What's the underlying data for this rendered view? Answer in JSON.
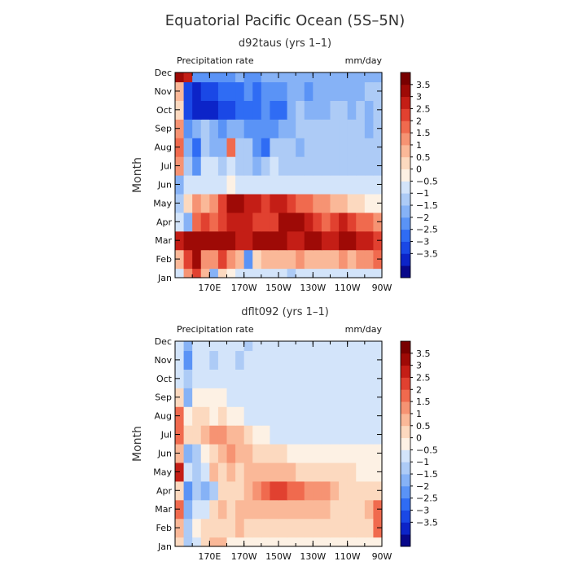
{
  "chart_data": {
    "type": "heatmap",
    "title": "Equatorial Pacific Ocean (5S–5N)",
    "colors": [
      "#08088a",
      "#0c24c8",
      "#1a48e6",
      "#2f6cf4",
      "#5a93f6",
      "#86b2f6",
      "#adcbf6",
      "#d3e4fa",
      "#fdf1e4",
      "#fcd9bf",
      "#fab898",
      "#f69373",
      "#f06a4e",
      "#e14130",
      "#c41e16",
      "#9e0a06",
      "#780000"
    ],
    "levels": [
      -3.5,
      -3,
      -2.5,
      -2,
      -1.5,
      -1,
      -0.5,
      0,
      0.5,
      1,
      1.5,
      2,
      2.5,
      3,
      3.5
    ],
    "panels": [
      {
        "subtitle": "d92taus (yrs 1–1)",
        "variable": "Precipitation rate",
        "units": "mm/day",
        "ylabel": "Month",
        "yticks": [
          "Jan",
          "Feb",
          "Mar",
          "Apr",
          "May",
          "Jun",
          "Jul",
          "Aug",
          "Sep",
          "Oct",
          "Nov",
          "Dec"
        ],
        "xticks": [
          "170E",
          "170W",
          "150W",
          "130W",
          "110W",
          "90W"
        ],
        "xlim": [
          150,
          270
        ],
        "colorbar_labels": [
          "3.5",
          "3",
          "2.5",
          "2",
          "1.5",
          "1",
          "0.5",
          "0",
          "−0.5",
          "−1",
          "−1.5",
          "−2",
          "−2.5",
          "−3",
          "−3.5"
        ],
        "grid": [
          [
            -0.5,
            1.5,
            2.5,
            1.0,
            -1.5,
            0.5,
            0.0,
            -0.5,
            -0.5,
            -0.5,
            -0.5,
            -0.5,
            -0.5,
            -1.0,
            -0.5,
            -0.5,
            -0.5,
            -0.5,
            -0.5,
            -0.5,
            -0.5,
            -0.5,
            -0.5,
            -0.5
          ],
          [
            1.0,
            2.5,
            3.5,
            1.5,
            1.5,
            2.5,
            1.5,
            1.0,
            -2.0,
            0.5,
            1.0,
            1.0,
            1.0,
            1.0,
            1.5,
            1.0,
            1.0,
            1.0,
            1.0,
            1.5,
            1.0,
            1.5,
            1.5,
            2.0
          ],
          [
            3.0,
            3.5,
            3.5,
            3.5,
            3.5,
            3.5,
            3.5,
            3.0,
            3.0,
            3.5,
            3.5,
            3.5,
            3.5,
            3.0,
            3.0,
            3.5,
            3.5,
            3.0,
            3.0,
            3.5,
            3.5,
            3.0,
            3.0,
            2.5
          ],
          [
            -0.5,
            -1.5,
            2.0,
            2.5,
            2.0,
            2.5,
            3.0,
            3.0,
            3.0,
            2.5,
            2.5,
            2.5,
            3.5,
            3.5,
            3.5,
            3.0,
            2.5,
            2.0,
            2.5,
            3.0,
            2.5,
            2.0,
            2.0,
            1.5
          ],
          [
            -1.0,
            0.5,
            1.5,
            1.0,
            1.5,
            2.5,
            3.5,
            3.5,
            3.0,
            3.0,
            2.5,
            3.0,
            3.0,
            2.5,
            2.0,
            2.0,
            1.5,
            1.5,
            1.0,
            1.0,
            0.5,
            0.5,
            0.0,
            0.0
          ],
          [
            -1.5,
            -0.5,
            -0.5,
            -0.5,
            -0.5,
            -0.5,
            0.0,
            -0.5,
            -0.5,
            -0.5,
            -0.5,
            -0.5,
            -0.5,
            -0.5,
            -0.5,
            -0.5,
            -0.5,
            -0.5,
            -0.5,
            -0.5,
            -0.5,
            -0.5,
            -0.5,
            -0.5
          ],
          [
            1.5,
            -1.0,
            -2.0,
            -0.5,
            -0.5,
            -1.0,
            -0.5,
            -1.0,
            -1.0,
            -1.5,
            -1.0,
            -0.5,
            -1.0,
            -1.0,
            -1.0,
            -1.0,
            -1.0,
            -1.0,
            -1.0,
            -1.0,
            -1.0,
            -1.0,
            -1.0,
            -1.0
          ],
          [
            2.0,
            -1.5,
            -2.5,
            -1.0,
            -1.5,
            -1.5,
            2.0,
            -1.0,
            -1.0,
            -2.0,
            -2.5,
            -1.0,
            -1.0,
            -1.0,
            -1.5,
            -1.0,
            -1.0,
            -1.0,
            -1.0,
            -1.0,
            -1.0,
            -1.0,
            -1.0,
            -1.0
          ],
          [
            1.5,
            -2.0,
            -1.5,
            -1.0,
            -1.5,
            -2.0,
            -1.5,
            -1.5,
            -2.0,
            -2.0,
            -2.0,
            -2.0,
            -1.5,
            -1.5,
            -1.0,
            -1.0,
            -1.0,
            -1.0,
            -1.0,
            -1.0,
            -1.0,
            -1.0,
            -1.5,
            -1.0
          ],
          [
            0.5,
            -3.0,
            -3.5,
            -3.5,
            -3.5,
            -3.0,
            -3.0,
            -2.5,
            -2.5,
            -2.5,
            -2.0,
            -2.5,
            -2.5,
            -1.5,
            -1.0,
            -1.5,
            -1.5,
            -1.5,
            -1.0,
            -1.0,
            -1.5,
            -1.0,
            -1.5,
            -1.0
          ],
          [
            1.0,
            -3.0,
            -3.5,
            -3.0,
            -3.0,
            -2.5,
            -2.5,
            -2.5,
            -2.0,
            -2.5,
            -2.0,
            -2.0,
            -2.0,
            -1.5,
            -1.5,
            -2.0,
            -1.5,
            -1.5,
            -1.5,
            -1.5,
            -1.5,
            -1.5,
            -1.0,
            -1.0
          ],
          [
            3.5,
            3.0,
            -2.0,
            -2.0,
            -2.0,
            -2.0,
            -2.0,
            -1.5,
            -2.0,
            -2.0,
            -1.5,
            -1.5,
            -1.5,
            -1.5,
            -1.5,
            -1.5,
            -1.5,
            -1.5,
            -1.5,
            -1.5,
            -1.5,
            -1.5,
            -1.5,
            -1.5
          ]
        ]
      },
      {
        "subtitle": "dflt092 (yrs 1–1)",
        "variable": "Precipitation rate",
        "units": "mm/day",
        "ylabel": "Month",
        "yticks": [
          "Jan",
          "Feb",
          "Mar",
          "Apr",
          "May",
          "Jun",
          "Jul",
          "Aug",
          "Sep",
          "Oct",
          "Nov",
          "Dec"
        ],
        "xticks": [
          "170E",
          "170W",
          "150W",
          "130W",
          "110W",
          "90W"
        ],
        "xlim": [
          150,
          270
        ],
        "colorbar_labels": [
          "3.5",
          "3",
          "2.5",
          "2",
          "1.5",
          "1",
          "0.5",
          "0",
          "−0.5",
          "−1",
          "−1.5",
          "−2",
          "−2.5",
          "−3",
          "−3.5"
        ],
        "grid": [
          [
            0.5,
            -1.0,
            -0.5,
            0.5,
            1.0,
            1.0,
            0.0,
            0.0,
            0.0,
            0.0,
            0.0,
            0.0,
            0.0,
            0.0,
            0.0,
            0.0,
            0.0,
            0.0,
            0.0,
            0.0,
            0.0,
            0.0,
            0.0,
            0.0
          ],
          [
            1.0,
            -1.0,
            0.0,
            0.5,
            0.5,
            0.5,
            0.5,
            1.0,
            0.5,
            0.5,
            0.5,
            0.5,
            0.5,
            0.5,
            0.5,
            0.5,
            0.5,
            0.5,
            0.5,
            0.5,
            0.5,
            0.5,
            0.5,
            2.0
          ],
          [
            2.0,
            -1.5,
            -0.5,
            -0.5,
            0.5,
            1.0,
            0.5,
            1.0,
            1.0,
            1.0,
            1.0,
            1.0,
            1.0,
            1.0,
            1.0,
            1.0,
            1.0,
            1.0,
            0.5,
            0.5,
            0.5,
            0.5,
            1.0,
            2.0
          ],
          [
            0.5,
            -2.0,
            -1.0,
            -1.5,
            -1.0,
            0.5,
            0.5,
            0.5,
            1.0,
            1.5,
            2.0,
            2.5,
            2.5,
            2.0,
            2.0,
            1.5,
            1.5,
            1.5,
            1.0,
            0.5,
            0.5,
            0.5,
            0.5,
            0.5
          ],
          [
            3.0,
            -0.5,
            -1.0,
            -0.5,
            1.0,
            0.5,
            1.0,
            0.5,
            1.0,
            1.0,
            1.0,
            1.0,
            1.0,
            1.0,
            0.5,
            0.5,
            0.5,
            0.5,
            0.5,
            0.5,
            0.5,
            0.0,
            0.0,
            0.0
          ],
          [
            1.0,
            -1.5,
            -1.0,
            0.0,
            0.5,
            1.0,
            1.5,
            1.0,
            1.0,
            0.5,
            0.5,
            0.5,
            0.5,
            0.0,
            0.0,
            0.0,
            0.0,
            0.0,
            0.0,
            0.0,
            0.0,
            0.0,
            0.0,
            0.0
          ],
          [
            2.0,
            0.5,
            0.5,
            1.0,
            1.5,
            1.5,
            1.0,
            1.0,
            0.5,
            0.0,
            0.0,
            -0.5,
            -0.5,
            -0.5,
            -0.5,
            -0.5,
            -0.5,
            -0.5,
            -0.5,
            -0.5,
            -0.5,
            -0.5,
            -0.5,
            -0.5
          ],
          [
            2.0,
            0.0,
            0.5,
            0.5,
            0.0,
            0.5,
            0.0,
            0.0,
            -0.5,
            -0.5,
            -0.5,
            -0.5,
            -0.5,
            -0.5,
            -0.5,
            -0.5,
            -0.5,
            -0.5,
            -0.5,
            -0.5,
            -0.5,
            -0.5,
            -0.5,
            -0.5
          ],
          [
            0.5,
            -1.5,
            0.0,
            0.0,
            0.0,
            0.0,
            -0.5,
            -0.5,
            -0.5,
            -0.5,
            -0.5,
            -0.5,
            -0.5,
            -0.5,
            -0.5,
            -0.5,
            -0.5,
            -0.5,
            -0.5,
            -0.5,
            -0.5,
            -0.5,
            -0.5,
            -0.5
          ],
          [
            -0.5,
            -1.0,
            -0.5,
            -0.5,
            -0.5,
            -0.5,
            -0.5,
            -0.5,
            -0.5,
            -0.5,
            -0.5,
            -0.5,
            -0.5,
            -0.5,
            -0.5,
            -0.5,
            -0.5,
            -0.5,
            -0.5,
            -0.5,
            -0.5,
            -0.5,
            -0.5,
            -0.5
          ],
          [
            -0.5,
            -2.0,
            -0.5,
            -0.5,
            -1.0,
            -0.5,
            -0.5,
            -1.0,
            -0.5,
            -0.5,
            -0.5,
            -0.5,
            -0.5,
            -0.5,
            -0.5,
            -0.5,
            -0.5,
            -0.5,
            -0.5,
            -0.5,
            -0.5,
            -0.5,
            -0.5,
            -0.5
          ],
          [
            -0.5,
            -1.5,
            -0.5,
            -0.5,
            -0.5,
            -0.5,
            -0.5,
            -0.5,
            -1.0,
            -0.5,
            -0.5,
            -0.5,
            -0.5,
            -0.5,
            -0.5,
            -0.5,
            -0.5,
            -0.5,
            -0.5,
            -0.5,
            -0.5,
            -0.5,
            -0.5,
            -0.5
          ]
        ]
      }
    ]
  }
}
